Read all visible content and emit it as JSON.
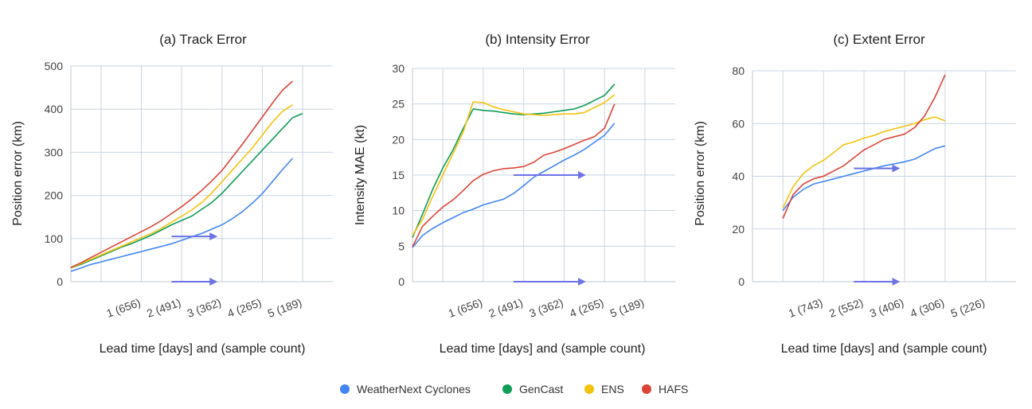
{
  "colors": {
    "WeatherNext Cyclones": "#4285F4",
    "GenCast": "#0F9D58",
    "ENS": "#F4C20D",
    "HAFS": "#DB4437",
    "arrow": "#6B73E6",
    "grid": "#c9d4e0",
    "axis": "#c0c8d0"
  },
  "legend": {
    "placement": "bottom-center",
    "entries": [
      "WeatherNext Cyclones",
      "GenCast",
      "ENS",
      "HAFS"
    ]
  },
  "chart_data": [
    {
      "type": "line",
      "title": "(a) Track Error",
      "xlabel": "Lead time [days] and (sample count)",
      "ylabel": "Position error (km)",
      "xlim": [
        -0.75,
        5.75
      ],
      "ylim": [
        0,
        500
      ],
      "yticks": [
        0,
        100,
        200,
        300,
        400,
        500
      ],
      "categories": [
        {
          "x": 1,
          "label": "1 (656)"
        },
        {
          "x": 2,
          "label": "2 (491)"
        },
        {
          "x": 3,
          "label": "3 (362)"
        },
        {
          "x": 4,
          "label": "4 (265)"
        },
        {
          "x": 5,
          "label": "5 (189)"
        }
      ],
      "x": [
        -0.75,
        -0.5,
        -0.25,
        0,
        0.25,
        0.5,
        0.75,
        1,
        1.25,
        1.5,
        1.75,
        2,
        2.25,
        2.5,
        2.75,
        3,
        3.25,
        3.5,
        3.75,
        4,
        4.25,
        4.5,
        4.75,
        5,
        5.25,
        5.5
      ],
      "series": [
        {
          "name": "WeatherNext Cyclones",
          "values": [
            24,
            32,
            40,
            46,
            52,
            58,
            64,
            70,
            76,
            82,
            88,
            96,
            104,
            112,
            122,
            132,
            146,
            162,
            182,
            204,
            232,
            260,
            286,
            null,
            null,
            null
          ]
        },
        {
          "name": "GenCast",
          "values": [
            32,
            40,
            50,
            60,
            70,
            80,
            88,
            98,
            108,
            120,
            132,
            142,
            152,
            168,
            184,
            205,
            230,
            255,
            280,
            305,
            330,
            355,
            380,
            390,
            null,
            null
          ]
        },
        {
          "name": "ENS",
          "values": [
            32,
            42,
            52,
            62,
            72,
            82,
            92,
            102,
            112,
            124,
            138,
            152,
            166,
            184,
            206,
            232,
            258,
            284,
            310,
            340,
            370,
            395,
            410,
            null,
            null,
            null
          ]
        },
        {
          "name": "HAFS",
          "values": [
            33,
            44,
            56,
            68,
            80,
            92,
            104,
            116,
            128,
            142,
            158,
            174,
            192,
            212,
            234,
            258,
            288,
            318,
            350,
            382,
            414,
            444,
            465,
            null,
            null,
            null
          ]
        }
      ],
      "arrows": [
        {
          "x1": 1.75,
          "x2": 2.85,
          "y": 105
        },
        {
          "x1": 1.75,
          "x2": 2.85,
          "y": 0
        }
      ]
    },
    {
      "type": "line",
      "title": "(b) Intensity Error",
      "xlabel": "Lead time [days] and (sample count)",
      "ylabel": "Intensity MAE (kt)",
      "xlim": [
        -0.75,
        5.75
      ],
      "ylim": [
        0,
        30
      ],
      "yticks": [
        0,
        5,
        10,
        15,
        20,
        25,
        30
      ],
      "categories": [
        {
          "x": 1,
          "label": "1 (656)"
        },
        {
          "x": 2,
          "label": "2 (491)"
        },
        {
          "x": 3,
          "label": "3 (362)"
        },
        {
          "x": 4,
          "label": "4 (265)"
        },
        {
          "x": 5,
          "label": "5 (189)"
        }
      ],
      "x": [
        -0.75,
        -0.5,
        -0.25,
        0,
        0.25,
        0.5,
        0.75,
        1,
        1.25,
        1.5,
        1.75,
        2,
        2.25,
        2.5,
        2.75,
        3,
        3.25,
        3.5,
        3.75,
        4,
        4.25,
        4.5,
        4.75,
        5,
        5.25,
        5.5
      ],
      "series": [
        {
          "name": "WeatherNext Cyclones",
          "values": [
            4.8,
            6.5,
            7.5,
            8.3,
            9,
            9.7,
            10.2,
            10.8,
            11.2,
            11.6,
            12.4,
            13.5,
            14.7,
            15.5,
            16.3,
            17.1,
            17.8,
            18.6,
            19.6,
            20.6,
            22.3,
            null,
            null,
            null,
            null,
            null
          ]
        },
        {
          "name": "GenCast",
          "values": [
            6.2,
            9.5,
            13,
            16,
            18.5,
            21.5,
            24.3,
            24.1,
            24,
            23.8,
            23.6,
            23.5,
            23.6,
            23.7,
            23.9,
            24.1,
            24.3,
            24.8,
            25.5,
            26.2,
            27.8,
            null,
            null,
            null,
            null,
            null
          ]
        },
        {
          "name": "ENS",
          "values": [
            6.5,
            8.8,
            12,
            15,
            18,
            21,
            25.3,
            25.2,
            24.6,
            24.2,
            23.9,
            23.6,
            23.5,
            23.4,
            23.5,
            23.6,
            23.6,
            23.8,
            24.5,
            25.2,
            26.3,
            null,
            null,
            null,
            null,
            null
          ]
        },
        {
          "name": "HAFS",
          "values": [
            4.9,
            7.8,
            9.2,
            10.5,
            11.5,
            12.8,
            14.2,
            15.1,
            15.6,
            15.9,
            16,
            16.2,
            16.8,
            17.8,
            18.2,
            18.7,
            19.3,
            19.9,
            20.4,
            21.6,
            25,
            null,
            null,
            null,
            null,
            null
          ]
        }
      ],
      "arrows": [
        {
          "x1": 1.75,
          "x2": 3.5,
          "y": 15
        },
        {
          "x1": 1.75,
          "x2": 3.5,
          "y": 0
        }
      ]
    },
    {
      "type": "line",
      "title": "(c) Extent Error",
      "xlabel": "Lead time [days] and (sample count)",
      "ylabel": "Position error (km)",
      "xlim": [
        -0.75,
        5.75
      ],
      "ylim": [
        0,
        80
      ],
      "yticks": [
        0,
        20,
        40,
        60,
        80
      ],
      "categories": [
        {
          "x": 1,
          "label": "1 (743)"
        },
        {
          "x": 2,
          "label": "2 (552)"
        },
        {
          "x": 3,
          "label": "3 (406)"
        },
        {
          "x": 4,
          "label": "4 (306)"
        },
        {
          "x": 5,
          "label": "5 (226)"
        }
      ],
      "x": [
        -0.75,
        -0.5,
        -0.25,
        0,
        0.25,
        0.5,
        0.75,
        1,
        1.25,
        1.5,
        1.75,
        2,
        2.25,
        2.5,
        2.75,
        3,
        3.25,
        3.5,
        3.75,
        4,
        4.25,
        4.5,
        4.75,
        5,
        5.25,
        5.5
      ],
      "series": [
        {
          "name": "WeatherNext Cyclones",
          "values": [
            null,
            null,
            null,
            27,
            32,
            35,
            37,
            38,
            39,
            40,
            41,
            42,
            43,
            44,
            44.7,
            45.5,
            46.5,
            48.5,
            50.5,
            51.5,
            null,
            null,
            null,
            null,
            null,
            null
          ]
        },
        {
          "name": "GenCast",
          "values": [
            null,
            null,
            null,
            null,
            null,
            null,
            null,
            null,
            null,
            null,
            null,
            null,
            null,
            null,
            null,
            null,
            null,
            null,
            null,
            null,
            null,
            null,
            null,
            null,
            null,
            null
          ]
        },
        {
          "name": "ENS",
          "values": [
            null,
            null,
            null,
            28,
            36,
            41,
            44,
            46,
            49,
            52,
            53,
            54.5,
            55.5,
            57,
            58,
            59,
            60,
            61.5,
            62.5,
            61,
            null,
            null,
            null,
            null,
            null,
            null
          ]
        },
        {
          "name": "HAFS",
          "values": [
            null,
            null,
            null,
            24,
            33,
            37,
            39,
            40,
            42,
            44,
            47,
            50,
            52,
            54,
            55,
            56,
            58.5,
            63,
            70,
            78.5,
            null,
            null,
            null,
            null,
            null,
            null
          ]
        }
      ],
      "arrows": [
        {
          "x1": 1.75,
          "x2": 2.85,
          "y": 43
        },
        {
          "x1": 1.75,
          "x2": 2.85,
          "y": 0
        }
      ]
    }
  ]
}
